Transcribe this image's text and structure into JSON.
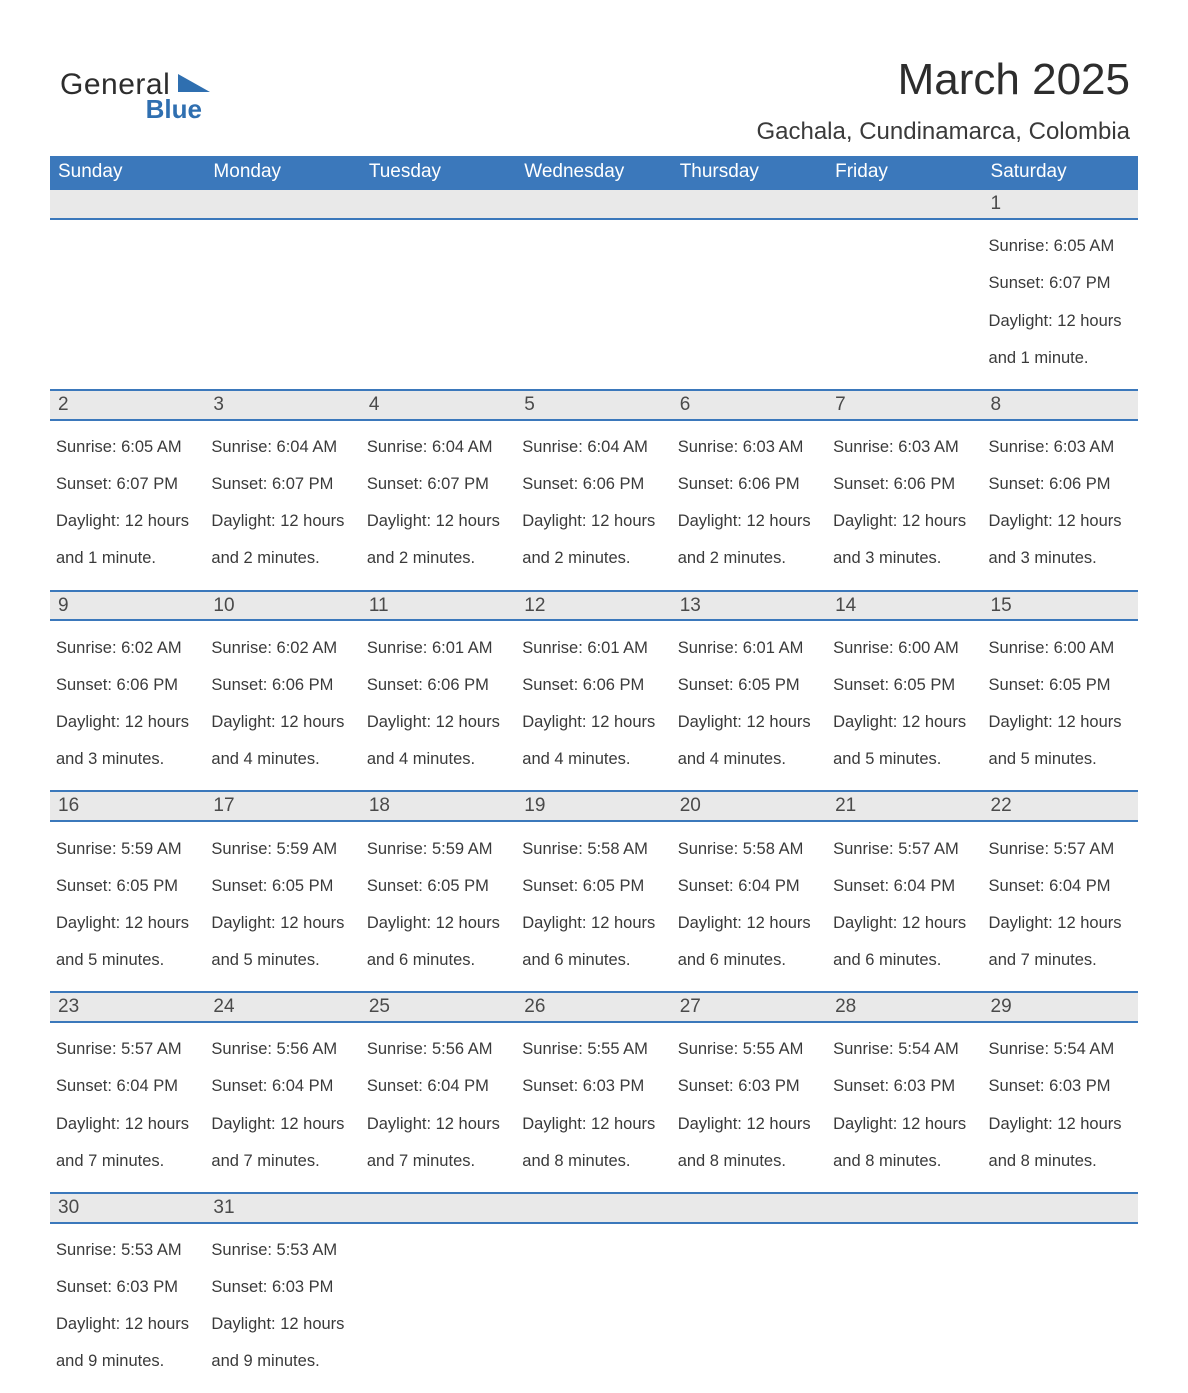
{
  "brand": {
    "word1": "General",
    "word2": "Blue",
    "logo_color": "#2f6fb0"
  },
  "title": "March 2025",
  "location": "Gachala, Cundinamarca, Colombia",
  "colors": {
    "header_bg": "#3b78bb",
    "header_text": "#ffffff",
    "daynum_bg": "#e9e9e9",
    "text": "#3a3a3a",
    "row_border": "#3b78bb"
  },
  "typography": {
    "title_fontsize_pt": 33,
    "location_fontsize_pt": 18,
    "header_fontsize_pt": 14,
    "daynum_fontsize_pt": 14,
    "body_fontsize_pt": 12
  },
  "weekdays": [
    "Sunday",
    "Monday",
    "Tuesday",
    "Wednesday",
    "Thursday",
    "Friday",
    "Saturday"
  ],
  "weeks": [
    [
      null,
      null,
      null,
      null,
      null,
      null,
      {
        "n": "1",
        "sr": "Sunrise: 6:05 AM",
        "ss": "Sunset: 6:07 PM",
        "d1": "Daylight: 12 hours",
        "d2": "and 1 minute."
      }
    ],
    [
      {
        "n": "2",
        "sr": "Sunrise: 6:05 AM",
        "ss": "Sunset: 6:07 PM",
        "d1": "Daylight: 12 hours",
        "d2": "and 1 minute."
      },
      {
        "n": "3",
        "sr": "Sunrise: 6:04 AM",
        "ss": "Sunset: 6:07 PM",
        "d1": "Daylight: 12 hours",
        "d2": "and 2 minutes."
      },
      {
        "n": "4",
        "sr": "Sunrise: 6:04 AM",
        "ss": "Sunset: 6:07 PM",
        "d1": "Daylight: 12 hours",
        "d2": "and 2 minutes."
      },
      {
        "n": "5",
        "sr": "Sunrise: 6:04 AM",
        "ss": "Sunset: 6:06 PM",
        "d1": "Daylight: 12 hours",
        "d2": "and 2 minutes."
      },
      {
        "n": "6",
        "sr": "Sunrise: 6:03 AM",
        "ss": "Sunset: 6:06 PM",
        "d1": "Daylight: 12 hours",
        "d2": "and 2 minutes."
      },
      {
        "n": "7",
        "sr": "Sunrise: 6:03 AM",
        "ss": "Sunset: 6:06 PM",
        "d1": "Daylight: 12 hours",
        "d2": "and 3 minutes."
      },
      {
        "n": "8",
        "sr": "Sunrise: 6:03 AM",
        "ss": "Sunset: 6:06 PM",
        "d1": "Daylight: 12 hours",
        "d2": "and 3 minutes."
      }
    ],
    [
      {
        "n": "9",
        "sr": "Sunrise: 6:02 AM",
        "ss": "Sunset: 6:06 PM",
        "d1": "Daylight: 12 hours",
        "d2": "and 3 minutes."
      },
      {
        "n": "10",
        "sr": "Sunrise: 6:02 AM",
        "ss": "Sunset: 6:06 PM",
        "d1": "Daylight: 12 hours",
        "d2": "and 4 minutes."
      },
      {
        "n": "11",
        "sr": "Sunrise: 6:01 AM",
        "ss": "Sunset: 6:06 PM",
        "d1": "Daylight: 12 hours",
        "d2": "and 4 minutes."
      },
      {
        "n": "12",
        "sr": "Sunrise: 6:01 AM",
        "ss": "Sunset: 6:06 PM",
        "d1": "Daylight: 12 hours",
        "d2": "and 4 minutes."
      },
      {
        "n": "13",
        "sr": "Sunrise: 6:01 AM",
        "ss": "Sunset: 6:05 PM",
        "d1": "Daylight: 12 hours",
        "d2": "and 4 minutes."
      },
      {
        "n": "14",
        "sr": "Sunrise: 6:00 AM",
        "ss": "Sunset: 6:05 PM",
        "d1": "Daylight: 12 hours",
        "d2": "and 5 minutes."
      },
      {
        "n": "15",
        "sr": "Sunrise: 6:00 AM",
        "ss": "Sunset: 6:05 PM",
        "d1": "Daylight: 12 hours",
        "d2": "and 5 minutes."
      }
    ],
    [
      {
        "n": "16",
        "sr": "Sunrise: 5:59 AM",
        "ss": "Sunset: 6:05 PM",
        "d1": "Daylight: 12 hours",
        "d2": "and 5 minutes."
      },
      {
        "n": "17",
        "sr": "Sunrise: 5:59 AM",
        "ss": "Sunset: 6:05 PM",
        "d1": "Daylight: 12 hours",
        "d2": "and 5 minutes."
      },
      {
        "n": "18",
        "sr": "Sunrise: 5:59 AM",
        "ss": "Sunset: 6:05 PM",
        "d1": "Daylight: 12 hours",
        "d2": "and 6 minutes."
      },
      {
        "n": "19",
        "sr": "Sunrise: 5:58 AM",
        "ss": "Sunset: 6:05 PM",
        "d1": "Daylight: 12 hours",
        "d2": "and 6 minutes."
      },
      {
        "n": "20",
        "sr": "Sunrise: 5:58 AM",
        "ss": "Sunset: 6:04 PM",
        "d1": "Daylight: 12 hours",
        "d2": "and 6 minutes."
      },
      {
        "n": "21",
        "sr": "Sunrise: 5:57 AM",
        "ss": "Sunset: 6:04 PM",
        "d1": "Daylight: 12 hours",
        "d2": "and 6 minutes."
      },
      {
        "n": "22",
        "sr": "Sunrise: 5:57 AM",
        "ss": "Sunset: 6:04 PM",
        "d1": "Daylight: 12 hours",
        "d2": "and 7 minutes."
      }
    ],
    [
      {
        "n": "23",
        "sr": "Sunrise: 5:57 AM",
        "ss": "Sunset: 6:04 PM",
        "d1": "Daylight: 12 hours",
        "d2": "and 7 minutes."
      },
      {
        "n": "24",
        "sr": "Sunrise: 5:56 AM",
        "ss": "Sunset: 6:04 PM",
        "d1": "Daylight: 12 hours",
        "d2": "and 7 minutes."
      },
      {
        "n": "25",
        "sr": "Sunrise: 5:56 AM",
        "ss": "Sunset: 6:04 PM",
        "d1": "Daylight: 12 hours",
        "d2": "and 7 minutes."
      },
      {
        "n": "26",
        "sr": "Sunrise: 5:55 AM",
        "ss": "Sunset: 6:03 PM",
        "d1": "Daylight: 12 hours",
        "d2": "and 8 minutes."
      },
      {
        "n": "27",
        "sr": "Sunrise: 5:55 AM",
        "ss": "Sunset: 6:03 PM",
        "d1": "Daylight: 12 hours",
        "d2": "and 8 minutes."
      },
      {
        "n": "28",
        "sr": "Sunrise: 5:54 AM",
        "ss": "Sunset: 6:03 PM",
        "d1": "Daylight: 12 hours",
        "d2": "and 8 minutes."
      },
      {
        "n": "29",
        "sr": "Sunrise: 5:54 AM",
        "ss": "Sunset: 6:03 PM",
        "d1": "Daylight: 12 hours",
        "d2": "and 8 minutes."
      }
    ],
    [
      {
        "n": "30",
        "sr": "Sunrise: 5:53 AM",
        "ss": "Sunset: 6:03 PM",
        "d1": "Daylight: 12 hours",
        "d2": "and 9 minutes."
      },
      {
        "n": "31",
        "sr": "Sunrise: 5:53 AM",
        "ss": "Sunset: 6:03 PM",
        "d1": "Daylight: 12 hours",
        "d2": "and 9 minutes."
      },
      null,
      null,
      null,
      null,
      null
    ]
  ]
}
